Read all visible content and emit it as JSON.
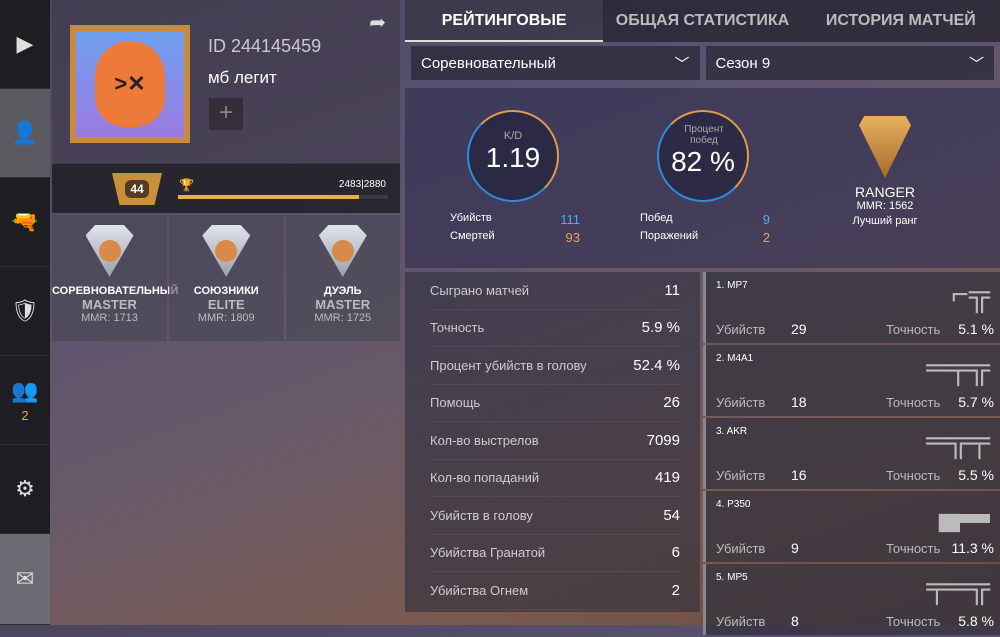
{
  "sidebar": {
    "items": [
      {
        "icon": "play-icon",
        "glyph": "▶"
      },
      {
        "icon": "profile-icon",
        "glyph": "👤"
      },
      {
        "icon": "pistol-icon",
        "glyph": "🔫"
      },
      {
        "icon": "shield-icon",
        "glyph": "🛡"
      },
      {
        "icon": "friends-icon",
        "glyph": "👥",
        "count": "2"
      },
      {
        "icon": "gear-icon",
        "glyph": "⚙"
      },
      {
        "icon": "mail-icon",
        "glyph": "✉"
      }
    ]
  },
  "profile": {
    "id": "ID 244145459",
    "name": "мб легит",
    "level": "44",
    "xp": "2483|2880",
    "xp_progress": 0.862
  },
  "ranks": [
    {
      "mode": "СОРЕВНОВАТЕЛЬНЫЙ",
      "tier": "MASTER",
      "mmr": "MMR: 1713"
    },
    {
      "mode": "СОЮЗНИКИ",
      "tier": "ELITE",
      "mmr": "MMR: 1809"
    },
    {
      "mode": "ДУЭЛЬ",
      "tier": "MASTER",
      "mmr": "MMR: 1725"
    }
  ],
  "tabs": [
    "РЕЙТИНГОВЫЕ",
    "ОБЩАЯ СТАТИСТИКА",
    "ИСТОРИЯ МАТЧЕЙ"
  ],
  "filters": {
    "mode": "Соревновательный",
    "season": "Сезон 9"
  },
  "summary": {
    "kd_label": "K/D",
    "kd": "1.19",
    "kills_label": "Убийств",
    "kills": "111",
    "deaths_label": "Смертей",
    "deaths": "93",
    "win_label": "Процент побед",
    "win": "82 %",
    "wins_label": "Побед",
    "wins": "9",
    "losses_label": "Поражений",
    "losses": "2",
    "best_rank": "RANGER",
    "best_mmr": "MMR: 1562",
    "best_label": "Лучший ранг"
  },
  "stats": [
    {
      "label": "Сыграно матчей",
      "value": "11"
    },
    {
      "label": "Точность",
      "value": "5.9 %"
    },
    {
      "label": "Процент убийств в голову",
      "value": "52.4 %"
    },
    {
      "label": "Помощь",
      "value": "26"
    },
    {
      "label": "Кол-во выстрелов",
      "value": "7099"
    },
    {
      "label": "Кол-во попаданий",
      "value": "419"
    },
    {
      "label": "Убийств в голову",
      "value": "54"
    },
    {
      "label": "Убийства Гранатой",
      "value": "6"
    },
    {
      "label": "Убийства Огнем",
      "value": "2"
    }
  ],
  "weapons": [
    {
      "name": "1. MP7",
      "kills": "29",
      "acc": "5.1 %"
    },
    {
      "name": "2. M4A1",
      "kills": "18",
      "acc": "5.7 %"
    },
    {
      "name": "3. AKR",
      "kills": "16",
      "acc": "5.5 %"
    },
    {
      "name": "4. P350",
      "kills": "9",
      "acc": "11.3 %"
    },
    {
      "name": "5. MP5",
      "kills": "8",
      "acc": "5.8 %"
    }
  ],
  "weapon_labels": {
    "kills": "Убийств",
    "acc": "Точность"
  },
  "colors": {
    "accent": "#e8b040",
    "blue": "#5aa8f0",
    "orange": "#e6a06a"
  }
}
